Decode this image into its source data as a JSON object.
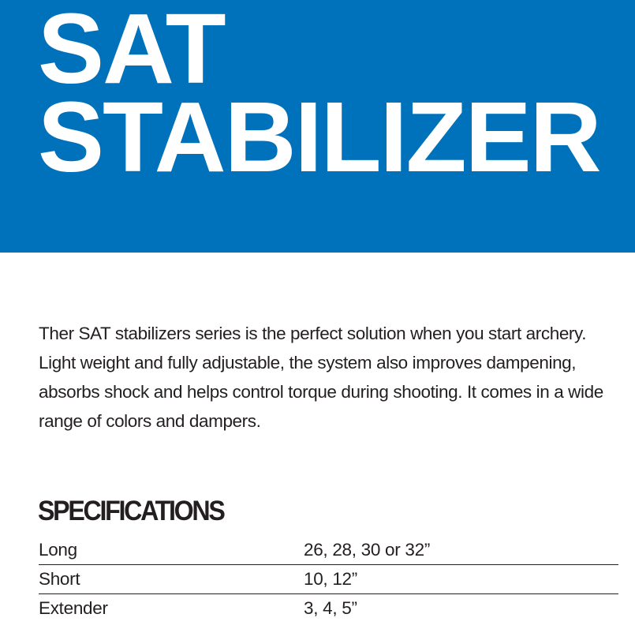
{
  "header": {
    "line1": "SAT",
    "line2": "STABILIZER",
    "background_color": "#0071bb"
  },
  "description": "Ther SAT stabilizers series is the perfect solution when you start archery. Light weight and fully adjustable, the system also improves dampening, absorbs shock and helps control torque during shooting. It comes in a wide range of colors and dampers.",
  "specifications": {
    "title": "SPECIFICATIONS",
    "rows": [
      {
        "label": "Long",
        "value": "26, 28, 30 or 32”"
      },
      {
        "label": "Short",
        "value": "10, 12”"
      },
      {
        "label": "Extender",
        "value": "3, 4, 5”"
      }
    ]
  }
}
